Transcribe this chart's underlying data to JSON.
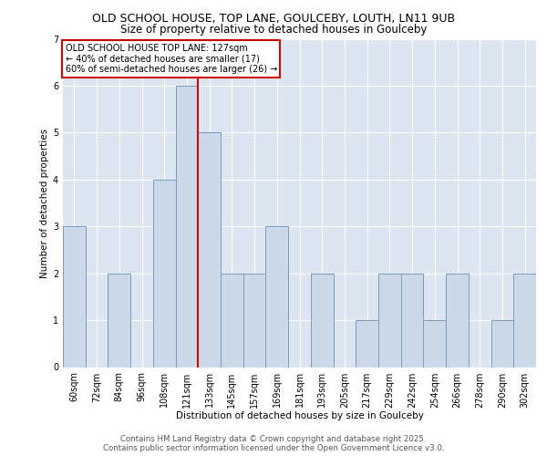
{
  "title1": "OLD SCHOOL HOUSE, TOP LANE, GOULCEBY, LOUTH, LN11 9UB",
  "title2": "Size of property relative to detached houses in Goulceby",
  "xlabel": "Distribution of detached houses by size in Goulceby",
  "ylabel": "Number of detached properties",
  "footer1": "Contains HM Land Registry data © Crown copyright and database right 2025.",
  "footer2": "Contains public sector information licensed under the Open Government Licence v3.0.",
  "bins": [
    "60sqm",
    "72sqm",
    "84sqm",
    "96sqm",
    "108sqm",
    "121sqm",
    "133sqm",
    "145sqm",
    "157sqm",
    "169sqm",
    "181sqm",
    "193sqm",
    "205sqm",
    "217sqm",
    "229sqm",
    "242sqm",
    "254sqm",
    "266sqm",
    "278sqm",
    "290sqm",
    "302sqm"
  ],
  "values": [
    3,
    0,
    2,
    0,
    4,
    6,
    5,
    2,
    2,
    3,
    0,
    2,
    0,
    1,
    2,
    2,
    1,
    2,
    0,
    1,
    2
  ],
  "bar_color": "#ccd9e8",
  "bar_edge_color": "#7a9bbf",
  "red_line_index": 6,
  "annotation_text": "OLD SCHOOL HOUSE TOP LANE: 127sqm\n← 40% of detached houses are smaller (17)\n60% of semi-detached houses are larger (26) →",
  "annotation_box_color": "#ffffff",
  "annotation_box_edge": "#cc0000",
  "ylim": [
    0,
    7
  ],
  "yticks": [
    0,
    1,
    2,
    3,
    4,
    5,
    6,
    7
  ],
  "background_color": "#dde5f0",
  "title1_fontsize": 9,
  "title2_fontsize": 8.5,
  "footer_fontsize": 6.2,
  "axis_fontsize": 7.5,
  "tick_fontsize": 7,
  "annot_fontsize": 7
}
